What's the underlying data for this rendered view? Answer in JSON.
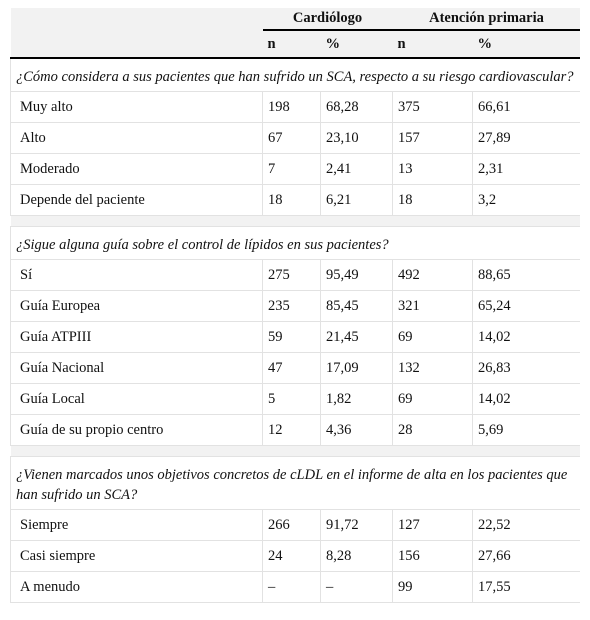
{
  "header": {
    "groups": [
      "Cardiólogo",
      "Atención primaria"
    ],
    "columns": [
      "n",
      "%",
      "n",
      "%"
    ]
  },
  "sections": [
    {
      "question": "¿Cómo considera a sus pacientes que han sufrido un SCA, respecto a su riesgo cardiovascular?",
      "rows": [
        [
          "Muy alto",
          "198",
          "68,28",
          "375",
          "66,61"
        ],
        [
          "Alto",
          "67",
          "23,10",
          "157",
          "27,89"
        ],
        [
          "Moderado",
          "7",
          "2,41",
          "13",
          "2,31"
        ],
        [
          "Depende del paciente",
          "18",
          "6,21",
          "18",
          "3,2"
        ]
      ]
    },
    {
      "question": "¿Sigue alguna guía sobre el control de lípidos en sus pacientes?",
      "rows": [
        [
          "Sí",
          "275",
          "95,49",
          "492",
          "88,65"
        ],
        [
          "Guía Europea",
          "235",
          "85,45",
          "321",
          "65,24"
        ],
        [
          "Guía ATPIII",
          "59",
          "21,45",
          "69",
          "14,02"
        ],
        [
          "Guía Nacional",
          "47",
          "17,09",
          "132",
          "26,83"
        ],
        [
          "Guía Local",
          "5",
          "1,82",
          "69",
          "14,02"
        ],
        [
          "Guía de su propio centro",
          "12",
          "4,36",
          "28",
          "5,69"
        ]
      ]
    },
    {
      "question": "¿Vienen marcados unos objetivos concretos de cLDL en el informe de alta en los pacientes que han sufrido un SCA?",
      "rows": [
        [
          "Siempre",
          "266",
          "91,72",
          "127",
          "22,52"
        ],
        [
          "Casi siempre",
          "24",
          "8,28",
          "156",
          "27,66"
        ],
        [
          "A menudo",
          "–",
          "–",
          "99",
          "17,55"
        ]
      ]
    }
  ]
}
